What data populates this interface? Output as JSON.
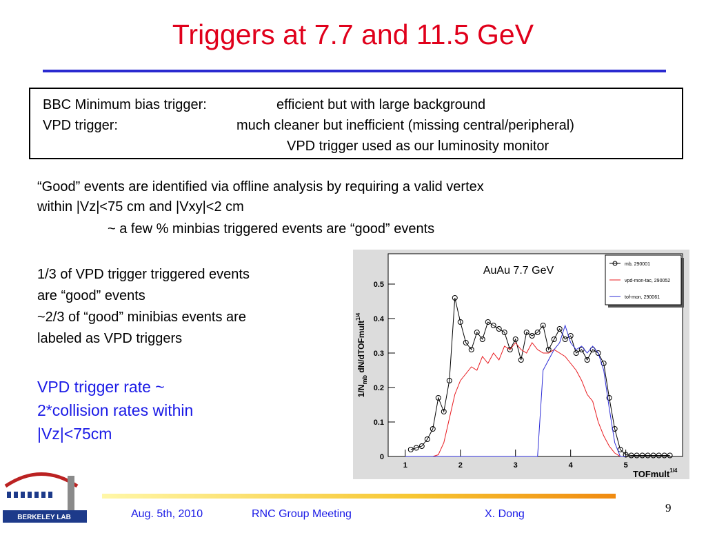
{
  "title": "Triggers at 7.7 and 11.5 GeV",
  "box": [
    [
      "BBC Minimum bias trigger:",
      "efficient but with large background"
    ],
    [
      "VPD trigger:",
      "much cleaner but inefficient (missing central/peripheral)"
    ],
    [
      "",
      "VPD trigger used as our luminosity monitor"
    ]
  ],
  "paragraph1": [
    "“Good” events are identified via offline analysis by requiring a valid vertex",
    "within |Vz|<75 cm and |Vxy|<2 cm",
    "~ a few % minbias triggered events are “good” events"
  ],
  "paragraph2": [
    "1/3 of VPD trigger triggered events",
    "are “good” events",
    "~2/3 of “good” minibias events are",
    "labeled as VPD triggers"
  ],
  "paragraph3": [
    "VPD trigger rate ~",
    "2*collision rates within",
    "|Vz|<75cm"
  ],
  "footer": {
    "date": "Aug. 5th, 2010",
    "meeting": "RNC Group Meeting",
    "author": "X. Dong",
    "page": "9"
  },
  "logo": "BERKELEY LAB",
  "chart_data": {
    "type": "line",
    "annotation": "AuAu 7.7 GeV",
    "ylabel": {
      "main": "1/N",
      "sub": "mb",
      "rest": " dN/dTOFmult",
      "sup": "1/4"
    },
    "xlabel": {
      "main": "TOFmult",
      "sup": "1/4"
    },
    "xlim": [
      0.69,
      6.03
    ],
    "ylim": [
      0,
      0.588
    ],
    "xticks": [
      1,
      2,
      3,
      4,
      5
    ],
    "yticks": [
      0,
      0.1,
      0.2,
      0.3,
      0.4,
      0.5
    ],
    "legend": "upper right",
    "x": [
      1.0,
      1.1,
      1.2,
      1.3,
      1.4,
      1.5,
      1.6,
      1.7,
      1.8,
      1.9,
      2.0,
      2.1,
      2.2,
      2.3,
      2.4,
      2.5,
      2.6,
      2.7,
      2.8,
      2.9,
      3.0,
      3.1,
      3.2,
      3.3,
      3.4,
      3.5,
      3.6,
      3.7,
      3.8,
      3.9,
      4.0,
      4.1,
      4.2,
      4.3,
      4.4,
      4.5,
      4.6,
      4.7,
      4.8,
      4.9,
      5.0,
      5.1,
      5.2,
      5.3,
      5.4,
      5.5,
      5.6,
      5.7,
      5.8
    ],
    "series": [
      {
        "name": "mb, 290001",
        "color": "#000000",
        "marker": "circle",
        "values": [
          null,
          0.02,
          0.025,
          0.03,
          0.05,
          0.08,
          0.17,
          0.13,
          0.22,
          0.46,
          0.39,
          0.33,
          0.31,
          0.36,
          0.34,
          0.39,
          0.38,
          0.37,
          0.36,
          0.31,
          0.34,
          0.28,
          0.36,
          0.35,
          0.36,
          0.38,
          0.31,
          0.34,
          0.37,
          0.34,
          0.35,
          0.3,
          0.31,
          0.28,
          0.31,
          0.3,
          0.27,
          0.17,
          0.08,
          0.02,
          0.005,
          0.003,
          0.003,
          0.003,
          0.003,
          0.003,
          0.003,
          0.003,
          0.003
        ]
      },
      {
        "name": "vpd-mon-tac, 290052",
        "color": "#e8191e",
        "marker": "none",
        "values": [
          null,
          null,
          null,
          null,
          null,
          0,
          0.005,
          0.04,
          0.11,
          0.18,
          0.22,
          0.24,
          0.26,
          0.25,
          0.29,
          0.27,
          0.3,
          0.28,
          0.32,
          0.31,
          0.33,
          0.31,
          0.3,
          0.33,
          0.31,
          0.3,
          0.3,
          0.31,
          0.3,
          0.29,
          0.27,
          0.25,
          0.22,
          0.18,
          0.16,
          0.1,
          0.06,
          0.03,
          0.01,
          0,
          0,
          null,
          null,
          null,
          null,
          null,
          null,
          null,
          null
        ]
      },
      {
        "name": "tof-mon, 290061",
        "color": "#2b2bd6",
        "marker": "none",
        "values": [
          0,
          0,
          0,
          0,
          0,
          0,
          0,
          0,
          0,
          0,
          0,
          0,
          0,
          0,
          0,
          0,
          0,
          0,
          0,
          0,
          0,
          0,
          0,
          0,
          0,
          0.25,
          0.28,
          0.31,
          0.33,
          0.38,
          0.33,
          0.31,
          0.32,
          0.3,
          0.32,
          0.3,
          0.25,
          0.14,
          0.04,
          0,
          0,
          null,
          null,
          null,
          null,
          null,
          null,
          null,
          null
        ]
      }
    ]
  }
}
